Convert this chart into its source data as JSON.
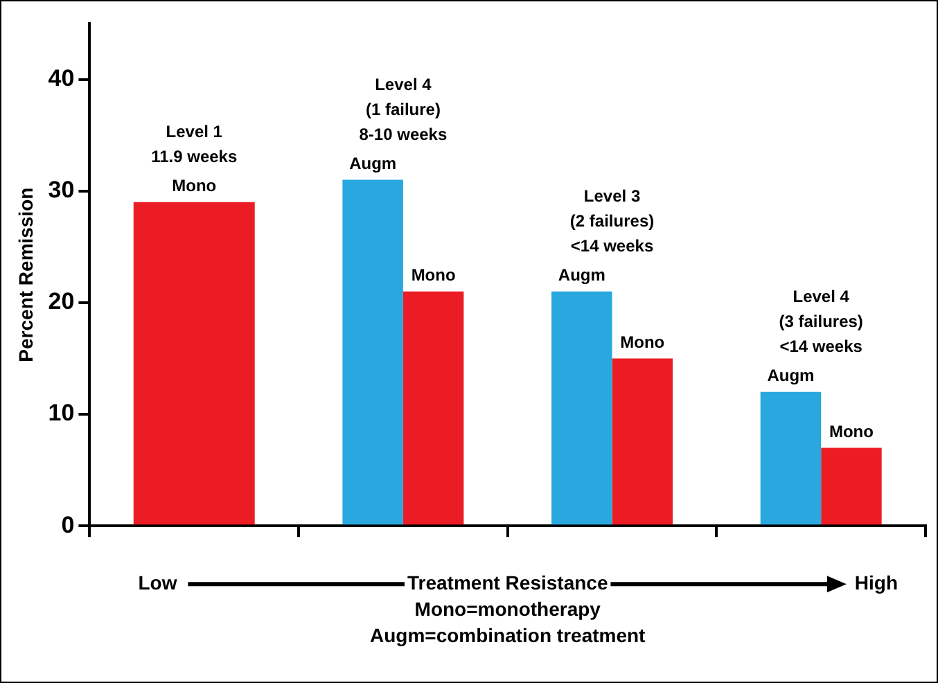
{
  "chart_data": {
    "type": "bar",
    "ylabel": "Percent Remission",
    "xlabel": "Treatment Resistance",
    "categories": [
      null,
      null,
      null,
      null
    ],
    "series": [
      {
        "name": "Augm",
        "color": "#29a8e0",
        "values": [
          null,
          31,
          21,
          12
        ]
      },
      {
        "name": "Mono",
        "color": "#ec1c24",
        "values": [
          29,
          21,
          15,
          7
        ]
      }
    ],
    "ylim": [
      0,
      45
    ],
    "yticks": [
      0,
      10,
      20,
      30,
      40
    ],
    "grid": false,
    "legend": false,
    "annotations": [
      "Level 1\n11.9 weeks",
      "Level 4\n(1 failure)\n8-10 weeks",
      "Level 3\n(2 failures)\n<14 weeks",
      "Level 4\n(3 failures)\n<14 weeks",
      "Low",
      "High",
      "Mono=monotherapy",
      "Augm=combination treatment"
    ]
  }
}
